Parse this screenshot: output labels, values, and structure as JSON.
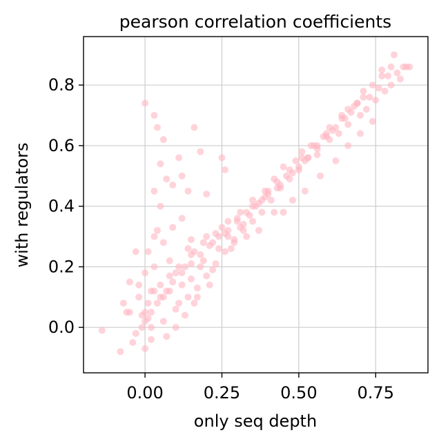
{
  "chart_data": {
    "type": "scatter",
    "title": "pearson correlation coefficients",
    "xlabel": "only seq depth",
    "ylabel": "with regulators",
    "xlim": [
      -0.2,
      0.92
    ],
    "ylim": [
      -0.15,
      0.96
    ],
    "xticks": [
      0.0,
      0.25,
      0.5,
      0.75
    ],
    "xtick_labels": [
      "0.00",
      "0.25",
      "0.50",
      "0.75"
    ],
    "yticks": [
      0.0,
      0.2,
      0.4,
      0.6,
      0.8
    ],
    "ytick_labels": [
      "0.0",
      "0.2",
      "0.4",
      "0.6",
      "0.8"
    ],
    "grid": true,
    "point_color": "#ffb6c1",
    "point_alpha": 0.6,
    "series": [
      {
        "x": [
          -0.14,
          -0.08,
          -0.07,
          -0.06,
          -0.05,
          -0.04,
          -0.03,
          -0.02,
          0.0,
          0.0,
          0.02,
          0.03,
          0.03,
          0.05,
          0.06,
          0.08,
          0.1,
          0.12,
          0.14,
          0.16,
          0.18,
          0.2,
          0.22,
          0.25,
          0.27,
          0.3,
          0.32,
          0.35,
          0.38,
          0.4,
          0.43,
          0.46,
          0.5,
          0.53,
          0.56,
          0.6,
          0.63,
          0.66,
          0.7,
          0.72,
          0.75,
          0.78,
          0.8,
          0.83,
          0.85,
          0.86,
          0.81,
          0.77,
          0.71,
          0.66,
          0.6,
          0.56,
          0.52,
          0.48,
          0.44,
          0.4,
          0.36,
          0.33,
          0.3,
          0.27,
          0.24,
          0.21,
          0.18,
          0.15,
          0.12,
          0.09,
          0.07,
          0.05,
          0.04,
          0.02,
          0.01,
          0.0,
          -0.01,
          -0.03,
          -0.05,
          0.0,
          0.01,
          0.04,
          0.06,
          0.08,
          0.11,
          0.13,
          0.15,
          0.17,
          0.19,
          0.22,
          0.24,
          0.26,
          0.29,
          0.31,
          0.34,
          0.37,
          0.39,
          0.42,
          0.45,
          0.49,
          0.51,
          0.54,
          0.58,
          0.61,
          0.64,
          0.67,
          0.69,
          0.73,
          0.76,
          0.79,
          0.82,
          0.84,
          0.0,
          0.03,
          0.04,
          0.06,
          0.05,
          0.11,
          0.16,
          0.18,
          0.12,
          0.25,
          0.26,
          0.2,
          0.14,
          0.09,
          0.07,
          0.03,
          -0.02,
          0.02,
          0.06,
          0.1,
          0.14,
          0.17,
          0.2,
          0.23,
          0.26,
          0.29,
          0.32,
          0.35,
          0.38,
          0.41,
          0.44,
          0.47,
          0.5,
          0.53,
          0.56,
          0.59,
          0.62,
          0.65,
          0.68,
          0.71,
          0.74,
          0.77,
          0.8,
          0.45,
          0.37,
          0.33,
          0.28,
          0.52,
          0.48,
          0.42,
          0.57,
          0.62,
          0.66,
          0.7,
          0.74,
          0.69,
          0.64,
          0.59,
          0.55,
          0.51,
          0.47,
          0.43,
          0.39,
          0.35,
          0.31,
          0.27,
          0.23,
          0.19,
          0.15,
          0.11,
          0.08,
          0.05,
          0.03,
          0.01,
          -0.01,
          0.02,
          0.07,
          0.13,
          0.1,
          0.16,
          0.21,
          0.12,
          0.09,
          0.15
        ],
        "y": [
          -0.01,
          -0.08,
          0.08,
          0.05,
          0.15,
          -0.05,
          0.25,
          0.1,
          -0.07,
          0.05,
          0.12,
          0.2,
          0.3,
          0.4,
          0.1,
          0.22,
          0.18,
          0.14,
          0.26,
          0.25,
          0.2,
          0.3,
          0.28,
          0.33,
          0.3,
          0.36,
          0.34,
          0.4,
          0.42,
          0.45,
          0.46,
          0.5,
          0.52,
          0.56,
          0.57,
          0.62,
          0.64,
          0.67,
          0.7,
          0.72,
          0.75,
          0.78,
          0.8,
          0.82,
          0.86,
          0.86,
          0.9,
          0.85,
          0.78,
          0.72,
          0.66,
          0.6,
          0.55,
          0.51,
          0.47,
          0.44,
          0.4,
          0.38,
          0.35,
          0.32,
          0.3,
          0.27,
          0.24,
          0.21,
          0.18,
          0.15,
          0.12,
          0.1,
          0.08,
          0.05,
          0.03,
          0.02,
          0.0,
          -0.02,
          0.05,
          0.18,
          0.25,
          0.32,
          0.28,
          0.12,
          0.08,
          0.2,
          0.16,
          0.1,
          0.22,
          0.19,
          0.26,
          0.31,
          0.29,
          0.33,
          0.37,
          0.41,
          0.43,
          0.49,
          0.53,
          0.55,
          0.58,
          0.6,
          0.63,
          0.65,
          0.69,
          0.71,
          0.74,
          0.76,
          0.79,
          0.83,
          0.84,
          0.86,
          0.74,
          0.7,
          0.66,
          0.62,
          0.54,
          0.56,
          0.66,
          0.58,
          0.5,
          0.56,
          0.52,
          0.44,
          0.45,
          0.47,
          0.49,
          0.45,
          0.14,
          0.0,
          0.02,
          0.06,
          0.1,
          0.13,
          0.17,
          0.21,
          0.25,
          0.28,
          0.32,
          0.35,
          0.38,
          0.42,
          0.46,
          0.49,
          0.53,
          0.56,
          0.59,
          0.63,
          0.66,
          0.69,
          0.73,
          0.76,
          0.8,
          0.83,
          0.86,
          0.38,
          0.32,
          0.3,
          0.26,
          0.45,
          0.42,
          0.38,
          0.5,
          0.55,
          0.6,
          0.64,
          0.68,
          0.74,
          0.7,
          0.64,
          0.6,
          0.56,
          0.52,
          0.48,
          0.45,
          0.42,
          0.38,
          0.35,
          0.31,
          0.28,
          0.24,
          0.2,
          0.17,
          0.14,
          0.12,
          0.08,
          0.04,
          -0.04,
          -0.03,
          0.04,
          0.0,
          0.08,
          0.14,
          0.36,
          0.33,
          0.29
        ]
      }
    ]
  }
}
